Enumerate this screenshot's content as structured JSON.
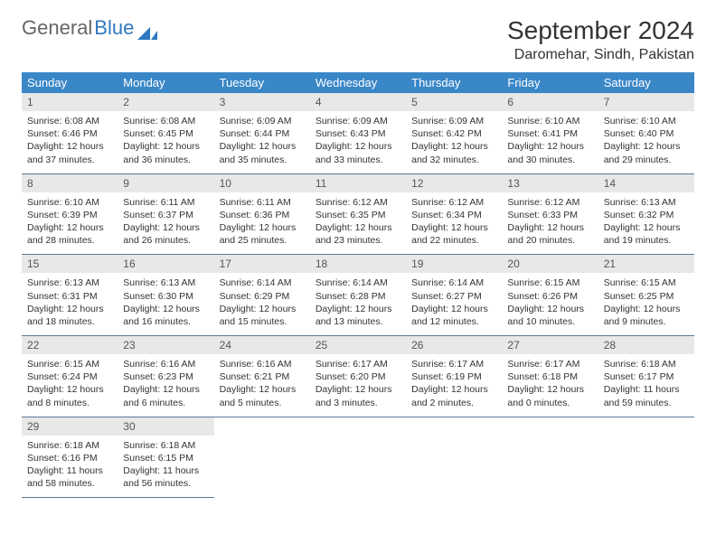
{
  "logo": {
    "general": "General",
    "blue": "Blue"
  },
  "title": {
    "month": "September 2024",
    "location": "Daromehar, Sindh, Pakistan"
  },
  "colors": {
    "header_bg": "#3a87c8",
    "header_text": "#ffffff",
    "daynum_bg": "#e8e8e8",
    "row_border": "#5a7a9a",
    "logo_blue": "#2f78c0",
    "text": "#333333"
  },
  "weekdays": [
    "Sunday",
    "Monday",
    "Tuesday",
    "Wednesday",
    "Thursday",
    "Friday",
    "Saturday"
  ],
  "days": [
    {
      "n": "1",
      "sr": "6:08 AM",
      "ss": "6:46 PM",
      "dl": "12 hours and 37 minutes."
    },
    {
      "n": "2",
      "sr": "6:08 AM",
      "ss": "6:45 PM",
      "dl": "12 hours and 36 minutes."
    },
    {
      "n": "3",
      "sr": "6:09 AM",
      "ss": "6:44 PM",
      "dl": "12 hours and 35 minutes."
    },
    {
      "n": "4",
      "sr": "6:09 AM",
      "ss": "6:43 PM",
      "dl": "12 hours and 33 minutes."
    },
    {
      "n": "5",
      "sr": "6:09 AM",
      "ss": "6:42 PM",
      "dl": "12 hours and 32 minutes."
    },
    {
      "n": "6",
      "sr": "6:10 AM",
      "ss": "6:41 PM",
      "dl": "12 hours and 30 minutes."
    },
    {
      "n": "7",
      "sr": "6:10 AM",
      "ss": "6:40 PM",
      "dl": "12 hours and 29 minutes."
    },
    {
      "n": "8",
      "sr": "6:10 AM",
      "ss": "6:39 PM",
      "dl": "12 hours and 28 minutes."
    },
    {
      "n": "9",
      "sr": "6:11 AM",
      "ss": "6:37 PM",
      "dl": "12 hours and 26 minutes."
    },
    {
      "n": "10",
      "sr": "6:11 AM",
      "ss": "6:36 PM",
      "dl": "12 hours and 25 minutes."
    },
    {
      "n": "11",
      "sr": "6:12 AM",
      "ss": "6:35 PM",
      "dl": "12 hours and 23 minutes."
    },
    {
      "n": "12",
      "sr": "6:12 AM",
      "ss": "6:34 PM",
      "dl": "12 hours and 22 minutes."
    },
    {
      "n": "13",
      "sr": "6:12 AM",
      "ss": "6:33 PM",
      "dl": "12 hours and 20 minutes."
    },
    {
      "n": "14",
      "sr": "6:13 AM",
      "ss": "6:32 PM",
      "dl": "12 hours and 19 minutes."
    },
    {
      "n": "15",
      "sr": "6:13 AM",
      "ss": "6:31 PM",
      "dl": "12 hours and 18 minutes."
    },
    {
      "n": "16",
      "sr": "6:13 AM",
      "ss": "6:30 PM",
      "dl": "12 hours and 16 minutes."
    },
    {
      "n": "17",
      "sr": "6:14 AM",
      "ss": "6:29 PM",
      "dl": "12 hours and 15 minutes."
    },
    {
      "n": "18",
      "sr": "6:14 AM",
      "ss": "6:28 PM",
      "dl": "12 hours and 13 minutes."
    },
    {
      "n": "19",
      "sr": "6:14 AM",
      "ss": "6:27 PM",
      "dl": "12 hours and 12 minutes."
    },
    {
      "n": "20",
      "sr": "6:15 AM",
      "ss": "6:26 PM",
      "dl": "12 hours and 10 minutes."
    },
    {
      "n": "21",
      "sr": "6:15 AM",
      "ss": "6:25 PM",
      "dl": "12 hours and 9 minutes."
    },
    {
      "n": "22",
      "sr": "6:15 AM",
      "ss": "6:24 PM",
      "dl": "12 hours and 8 minutes."
    },
    {
      "n": "23",
      "sr": "6:16 AM",
      "ss": "6:23 PM",
      "dl": "12 hours and 6 minutes."
    },
    {
      "n": "24",
      "sr": "6:16 AM",
      "ss": "6:21 PM",
      "dl": "12 hours and 5 minutes."
    },
    {
      "n": "25",
      "sr": "6:17 AM",
      "ss": "6:20 PM",
      "dl": "12 hours and 3 minutes."
    },
    {
      "n": "26",
      "sr": "6:17 AM",
      "ss": "6:19 PM",
      "dl": "12 hours and 2 minutes."
    },
    {
      "n": "27",
      "sr": "6:17 AM",
      "ss": "6:18 PM",
      "dl": "12 hours and 0 minutes."
    },
    {
      "n": "28",
      "sr": "6:18 AM",
      "ss": "6:17 PM",
      "dl": "11 hours and 59 minutes."
    },
    {
      "n": "29",
      "sr": "6:18 AM",
      "ss": "6:16 PM",
      "dl": "11 hours and 58 minutes."
    },
    {
      "n": "30",
      "sr": "6:18 AM",
      "ss": "6:15 PM",
      "dl": "11 hours and 56 minutes."
    }
  ],
  "labels": {
    "sunrise": "Sunrise:",
    "sunset": "Sunset:",
    "daylight": "Daylight:"
  },
  "layout": {
    "columns": 7,
    "start_weekday": 0,
    "total_cells": 35
  }
}
